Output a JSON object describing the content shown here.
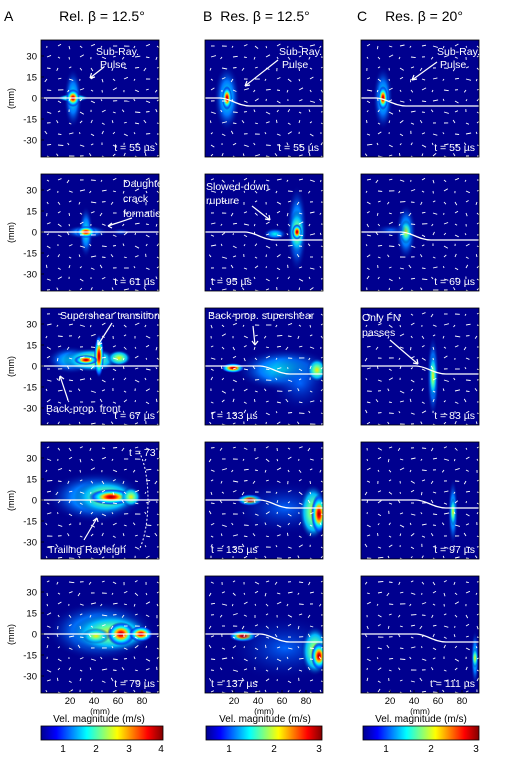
{
  "columns": [
    {
      "letter": "A",
      "title": "Rel. β = 12.5°",
      "cbar_ticks": [
        "1",
        "2",
        "3",
        "4"
      ]
    },
    {
      "letter": "B",
      "title": "Res. β = 12.5°",
      "cbar_ticks": [
        "1",
        "2",
        "3"
      ]
    },
    {
      "letter": "C",
      "title": "Res. β = 20°",
      "cbar_ticks": [
        "1",
        "2",
        "3"
      ]
    }
  ],
  "ylabel": "(mm)",
  "xlabel": "(mm)",
  "colorbar_label": "Vel. magnitude (m/s)",
  "yticks": [
    "30",
    "15",
    "0",
    "-15",
    "-30"
  ],
  "xticks": [
    "20",
    "40",
    "60",
    "80"
  ],
  "times": [
    [
      "t = 55 µs",
      "t = 55 µs",
      "t = 55 µs"
    ],
    [
      "t = 61 µs",
      "t = 95 µs",
      "t = 69 µs"
    ],
    [
      "t = 67 µs",
      "t = 133 µs",
      "t = 83 µs"
    ],
    [
      "t = 73 µs",
      "t = 135 µs",
      "t = 97 µs"
    ],
    [
      "t = 79 µs",
      "t = 137 µs",
      "t = 111 µs"
    ]
  ],
  "annotations": {
    "a1_line1": "Sub-Ray.",
    "a1_line2": "Pulse",
    "b1_line1": "Sub-Ray.",
    "b1_line2": "Pulse",
    "c1_line1": "Sub-Ray.",
    "c1_line2": "Pulse",
    "a2_line1": "Daughter",
    "a2_line2": "crack",
    "a2_line3": "formation",
    "b2_line1": "Slowed-down",
    "b2_line2": "rupture",
    "a3_top": "Supershear transition",
    "a3_bottom": "Back-prop. front",
    "b3_top": "Back-prop. supershear",
    "c3_line1": "Only FN",
    "c3_line2": "passes",
    "a4_bottom": "Trailing Rayleigh"
  },
  "colors": {
    "bg": "#00008f",
    "fault": "#ffffff",
    "arrow": "#ffffff"
  }
}
